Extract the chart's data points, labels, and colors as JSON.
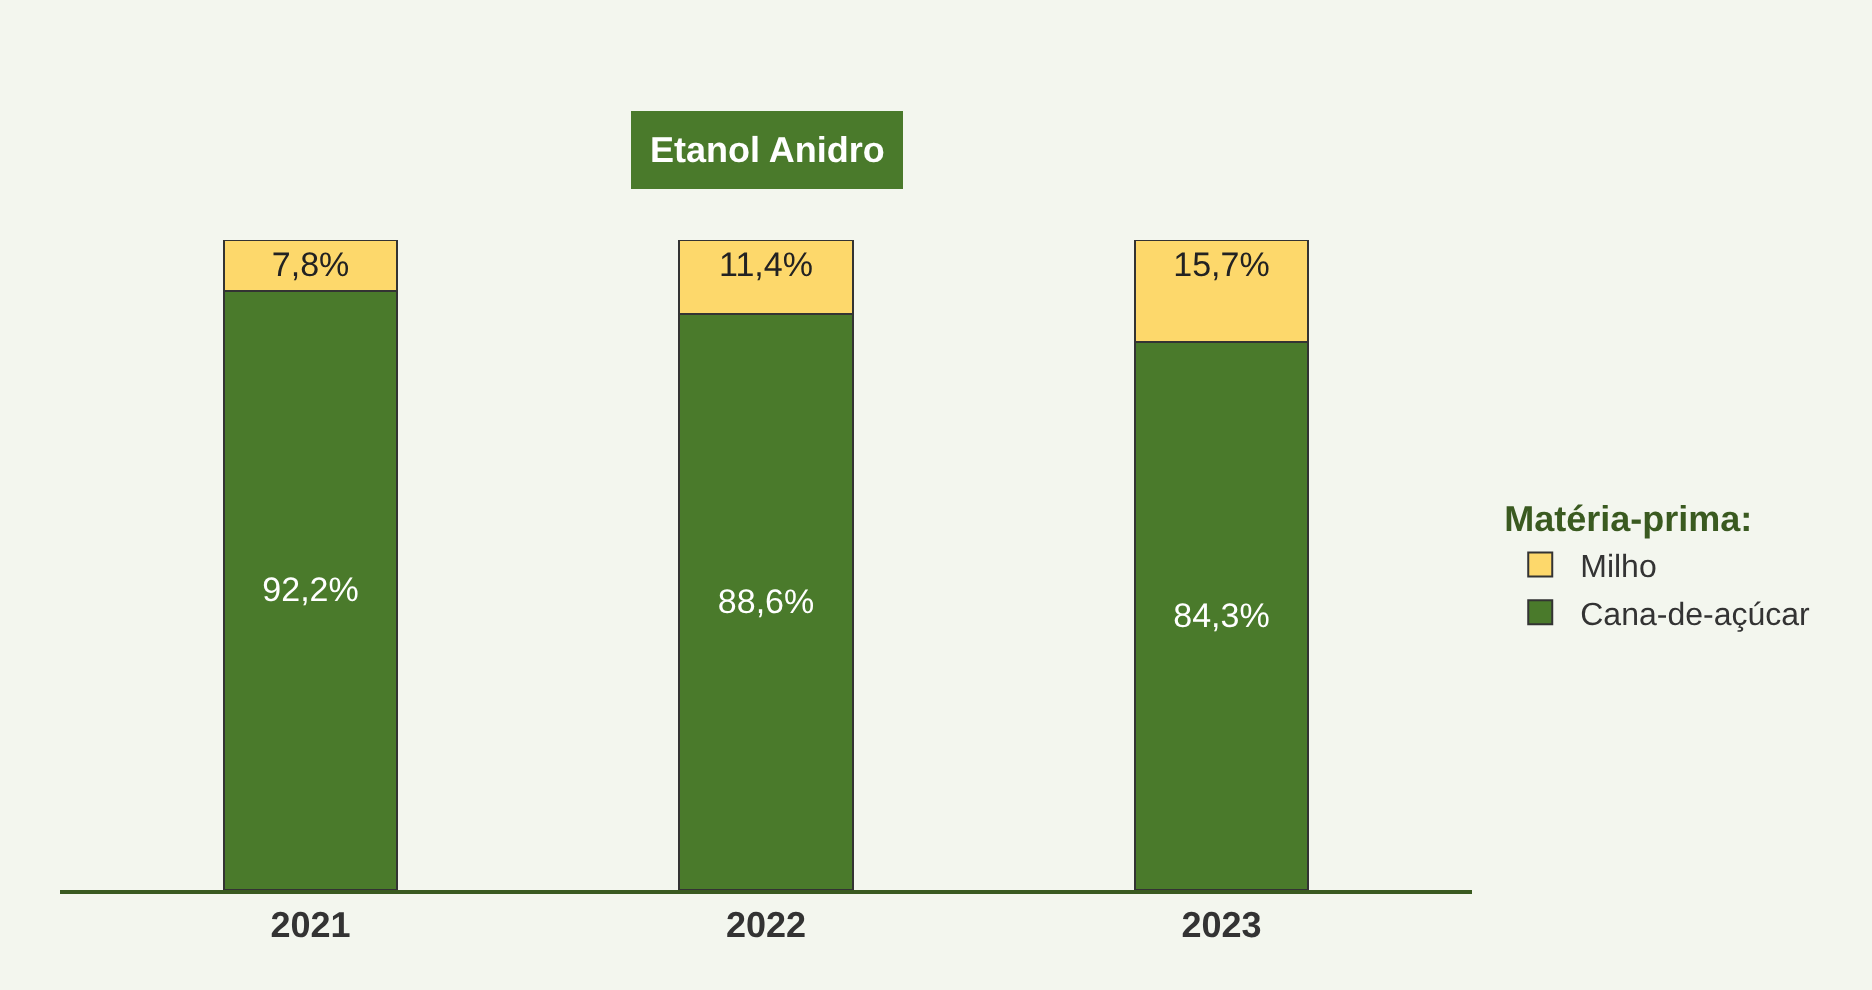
{
  "chart_data": {
    "type": "bar",
    "title": "Etanol Anidro",
    "legend_title": "Matéria-prima:",
    "categories": [
      "2021",
      "2022",
      "2023"
    ],
    "series": [
      {
        "name": "Cana-de-açúcar",
        "color": "#4a7a2b",
        "values": [
          92.2,
          88.6,
          84.3
        ],
        "value_labels": [
          "92,2%",
          "88,6%",
          "84,3%"
        ]
      },
      {
        "name": "Milho",
        "color": "#fdd86b",
        "values": [
          7.8,
          11.4,
          15.7
        ],
        "value_labels": [
          "7,8%",
          "11,4%",
          "15,7%"
        ]
      }
    ],
    "stacked": true,
    "ylim": [
      0,
      100
    ],
    "tick_labels": "x",
    "grid": false,
    "legend": "right"
  }
}
